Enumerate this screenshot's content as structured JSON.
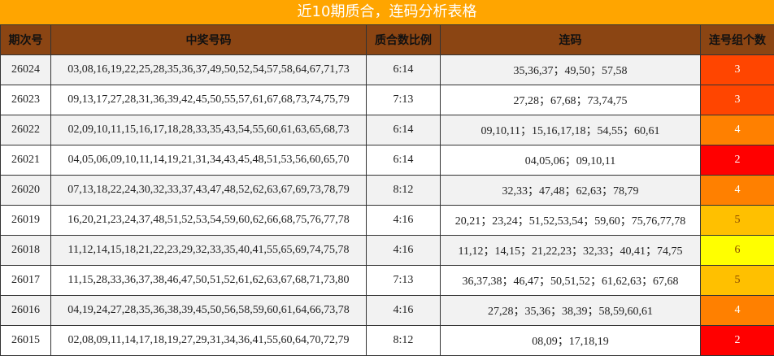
{
  "title": "近10期质合，连码分析表格",
  "table": {
    "headers": [
      "期次号",
      "中奖号码",
      "质合数比例",
      "连码",
      "连号组个数"
    ],
    "rows": [
      [
        "26024",
        "03,08,16,19,22,25,28,35,36,37,49,50,52,54,57,58,64,67,71,73",
        "6:14",
        "35,36,37；49,50；57,58",
        "3"
      ],
      [
        "26023",
        "09,13,17,27,28,31,36,39,42,45,50,55,57,61,67,68,73,74,75,79",
        "7:13",
        "27,28；67,68；73,74,75",
        "3"
      ],
      [
        "26022",
        "02,09,10,11,15,16,17,18,28,33,35,43,54,55,60,61,63,65,68,73",
        "6:14",
        "09,10,11；15,16,17,18；54,55；60,61",
        "4"
      ],
      [
        "26021",
        "04,05,06,09,10,11,14,19,21,31,34,43,45,48,51,53,56,60,65,70",
        "6:14",
        "04,05,06；09,10,11",
        "2"
      ],
      [
        "26020",
        "07,13,18,22,24,30,32,33,37,43,47,48,52,62,63,67,69,73,78,79",
        "8:12",
        "32,33；47,48；62,63；78,79",
        "4"
      ],
      [
        "26019",
        "16,20,21,23,24,37,48,51,52,53,54,59,60,62,66,68,75,76,77,78",
        "4:16",
        "20,21；23,24；51,52,53,54；59,60；75,76,77,78",
        "5"
      ],
      [
        "26018",
        "11,12,14,15,18,21,22,23,29,32,33,35,40,41,55,65,69,74,75,78",
        "4:16",
        "11,12；14,15；21,22,23；32,33；40,41；74,75",
        "6"
      ],
      [
        "26017",
        "11,15,28,33,36,37,38,46,47,50,51,52,61,62,63,67,68,71,73,80",
        "7:13",
        "36,37,38；46,47；50,51,52；61,62,63；67,68",
        "5"
      ],
      [
        "26016",
        "04,19,24,27,28,35,36,38,39,45,50,56,58,59,60,61,64,66,73,78",
        "4:16",
        "27,28；35,36；38,39；58,59,60,61",
        "4"
      ],
      [
        "26015",
        "02,08,09,11,14,17,18,19,27,29,31,34,36,41,55,60,64,70,72,79",
        "8:12",
        "08,09；17,18,19",
        "2"
      ]
    ],
    "count_colors": {
      "2": "#ff0000",
      "3": "#ff4500",
      "4": "#ff8000",
      "5": "#ffc000",
      "6": "#ffff00"
    }
  }
}
